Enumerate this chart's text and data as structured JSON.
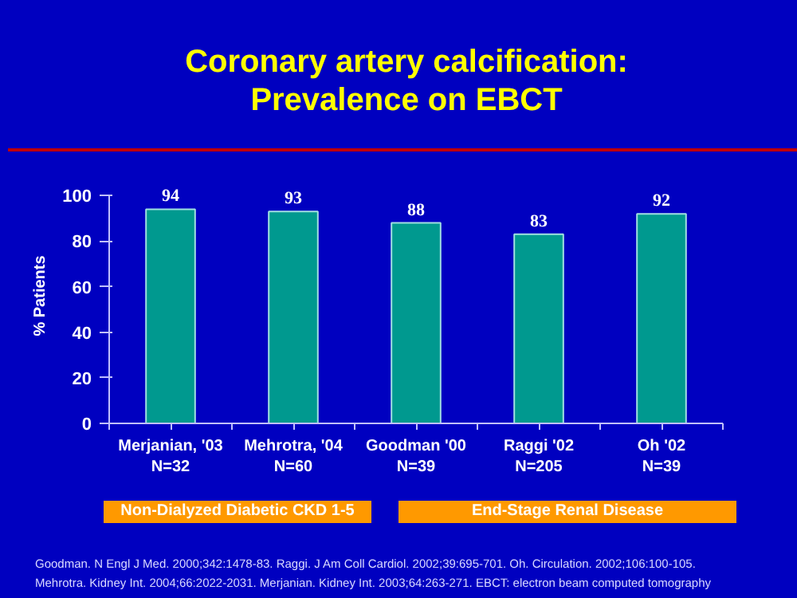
{
  "chart_data": {
    "type": "bar",
    "title": "Coronary artery calcification:\nPrevalence on EBCT",
    "ylabel": "% Patients",
    "categories": [
      "Merjanian, '03\nN=32",
      "Mehrotra, '04\nN=60",
      "Goodman '00\nN=39",
      "Raggi '02\nN=205",
      "Oh '02\nN=39"
    ],
    "values": [
      94,
      93,
      88,
      83,
      92
    ],
    "color": "#00998f",
    "data_labels": true,
    "ylim": [
      0,
      100
    ],
    "yticks": [
      0,
      20,
      40,
      60,
      80,
      100
    ],
    "grid": false,
    "annotations": [
      "Non-Dialyzed Diabetic CKD 1-5",
      "End-Stage Renal Disease",
      "Goodman. N Engl J Med. 2000;342:1478-83.  Raggi. J Am Coll Cardiol. 2002;39:695-701.  Oh. Circulation. 2002;106:100-105.",
      "Mehrotra. Kidney Int. 2004;66:2022-2031.  Merjanian. Kidney Int. 2003;64:263-271.  EBCT: electron beam computed tomography"
    ]
  }
}
